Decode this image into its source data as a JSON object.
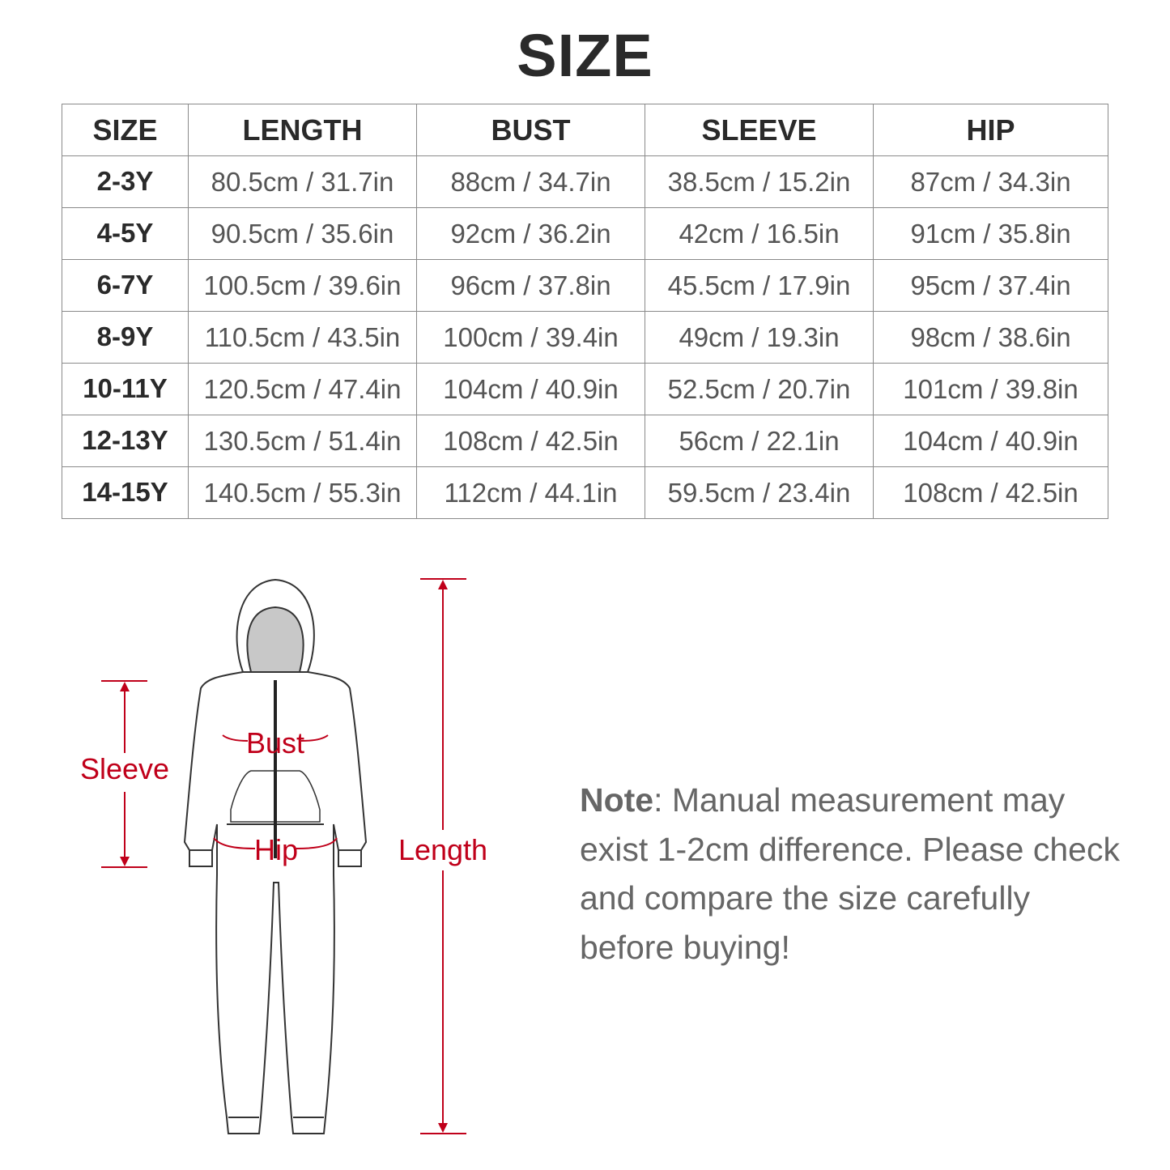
{
  "title": "SIZE",
  "table": {
    "headers": [
      "SIZE",
      "LENGTH",
      "BUST",
      "SLEEVE",
      "HIP"
    ],
    "rows": [
      [
        "2-3Y",
        "80.5cm / 31.7in",
        "88cm / 34.7in",
        "38.5cm / 15.2in",
        "87cm / 34.3in"
      ],
      [
        "4-5Y",
        "90.5cm / 35.6in",
        "92cm / 36.2in",
        "42cm / 16.5in",
        "91cm / 35.8in"
      ],
      [
        "6-7Y",
        "100.5cm / 39.6in",
        "96cm / 37.8in",
        "45.5cm / 17.9in",
        "95cm / 37.4in"
      ],
      [
        "8-9Y",
        "110.5cm / 43.5in",
        "100cm / 39.4in",
        "49cm / 19.3in",
        "98cm / 38.6in"
      ],
      [
        "10-11Y",
        "120.5cm / 47.4in",
        "104cm / 40.9in",
        "52.5cm / 20.7in",
        "101cm / 39.8in"
      ],
      [
        "12-13Y",
        "130.5cm / 51.4in",
        "108cm / 42.5in",
        "56cm / 22.1in",
        "104cm / 40.9in"
      ],
      [
        "14-15Y",
        "140.5cm / 55.3in",
        "112cm / 44.1in",
        "59.5cm / 23.4in",
        "108cm / 42.5in"
      ]
    ]
  },
  "figure": {
    "labels": {
      "sleeve": "Sleeve",
      "bust": "Bust",
      "hip": "Hip",
      "length": "Length"
    },
    "accent_color": "#c0001a"
  },
  "note": {
    "label": "Note",
    "text": ": Manual measurement may exist 1-2cm difference. Please check and compare the size carefully before buying!"
  }
}
